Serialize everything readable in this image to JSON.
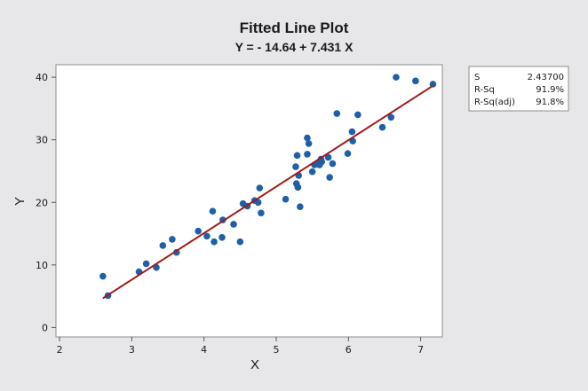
{
  "chart_data": {
    "type": "scatter",
    "title": "Fitted Line Plot",
    "subtitle": "Y = - 14.64 + 7.431 X",
    "xlabel": "X",
    "ylabel": "Y",
    "xlim": [
      1.95,
      7.3
    ],
    "ylim": [
      -1.5,
      42
    ],
    "x_ticks": [
      2,
      3,
      4,
      5,
      6,
      7
    ],
    "y_ticks": [
      0,
      10,
      20,
      30,
      40
    ],
    "grid": false,
    "points": [
      [
        2.6,
        8.2
      ],
      [
        2.67,
        5.1
      ],
      [
        3.1,
        8.9
      ],
      [
        3.2,
        10.2
      ],
      [
        3.34,
        9.6
      ],
      [
        3.43,
        13.1
      ],
      [
        3.56,
        14.1
      ],
      [
        3.62,
        12.0
      ],
      [
        3.92,
        15.4
      ],
      [
        4.04,
        14.6
      ],
      [
        4.12,
        18.6
      ],
      [
        4.14,
        13.7
      ],
      [
        4.25,
        14.4
      ],
      [
        4.26,
        17.2
      ],
      [
        4.41,
        16.5
      ],
      [
        4.5,
        13.7
      ],
      [
        4.54,
        19.8
      ],
      [
        4.6,
        19.4
      ],
      [
        4.7,
        20.3
      ],
      [
        4.75,
        20.0
      ],
      [
        4.77,
        22.3
      ],
      [
        4.79,
        18.3
      ],
      [
        5.13,
        20.5
      ],
      [
        5.27,
        25.7
      ],
      [
        5.28,
        23.0
      ],
      [
        5.29,
        27.5
      ],
      [
        5.3,
        22.4
      ],
      [
        5.31,
        24.3
      ],
      [
        5.33,
        19.3
      ],
      [
        5.43,
        27.7
      ],
      [
        5.43,
        30.3
      ],
      [
        5.45,
        29.4
      ],
      [
        5.5,
        24.9
      ],
      [
        5.53,
        26.0
      ],
      [
        5.57,
        26.3
      ],
      [
        5.6,
        26.0
      ],
      [
        5.62,
        26.9
      ],
      [
        5.63,
        26.5
      ],
      [
        5.72,
        27.2
      ],
      [
        5.74,
        24.0
      ],
      [
        5.78,
        26.2
      ],
      [
        5.84,
        34.2
      ],
      [
        5.99,
        27.8
      ],
      [
        6.05,
        31.3
      ],
      [
        6.06,
        29.8
      ],
      [
        6.13,
        34.0
      ],
      [
        6.47,
        32.0
      ],
      [
        6.59,
        33.6
      ],
      [
        6.66,
        40.0
      ],
      [
        6.93,
        39.4
      ],
      [
        7.17,
        38.9
      ]
    ],
    "fit_line": {
      "intercept": -14.64,
      "slope": 7.431,
      "x_range": [
        2.6,
        7.17
      ],
      "color": "#a01c1c"
    },
    "point_color": "#1f5fa8",
    "stats": [
      {
        "label": "S",
        "value": "2.43700"
      },
      {
        "label": "R-Sq",
        "value": "91.9%"
      },
      {
        "label": "R-Sq(adj)",
        "value": "91.8%"
      }
    ],
    "stats_placement": "top-right"
  }
}
